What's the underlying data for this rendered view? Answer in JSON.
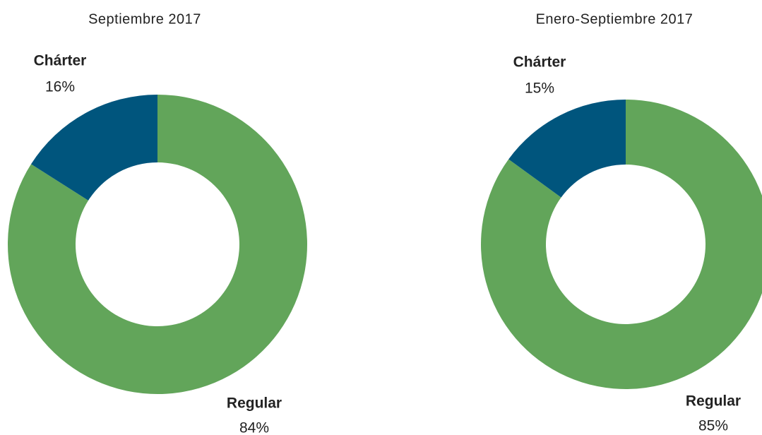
{
  "chart_data": [
    {
      "type": "pie",
      "donut": true,
      "title": "Septiembre 2017",
      "categories": [
        "Regular",
        "Chárter"
      ],
      "values": [
        84,
        16
      ],
      "value_labels": [
        "84%",
        "16%"
      ],
      "colors": [
        "#62a55a",
        "#00557d"
      ]
    },
    {
      "type": "pie",
      "donut": true,
      "title": "Enero-Septiembre 2017",
      "categories": [
        "Regular",
        "Chárter"
      ],
      "values": [
        85,
        15
      ],
      "value_labels": [
        "85%",
        "15%"
      ],
      "colors": [
        "#62a55a",
        "#00557d"
      ]
    }
  ]
}
